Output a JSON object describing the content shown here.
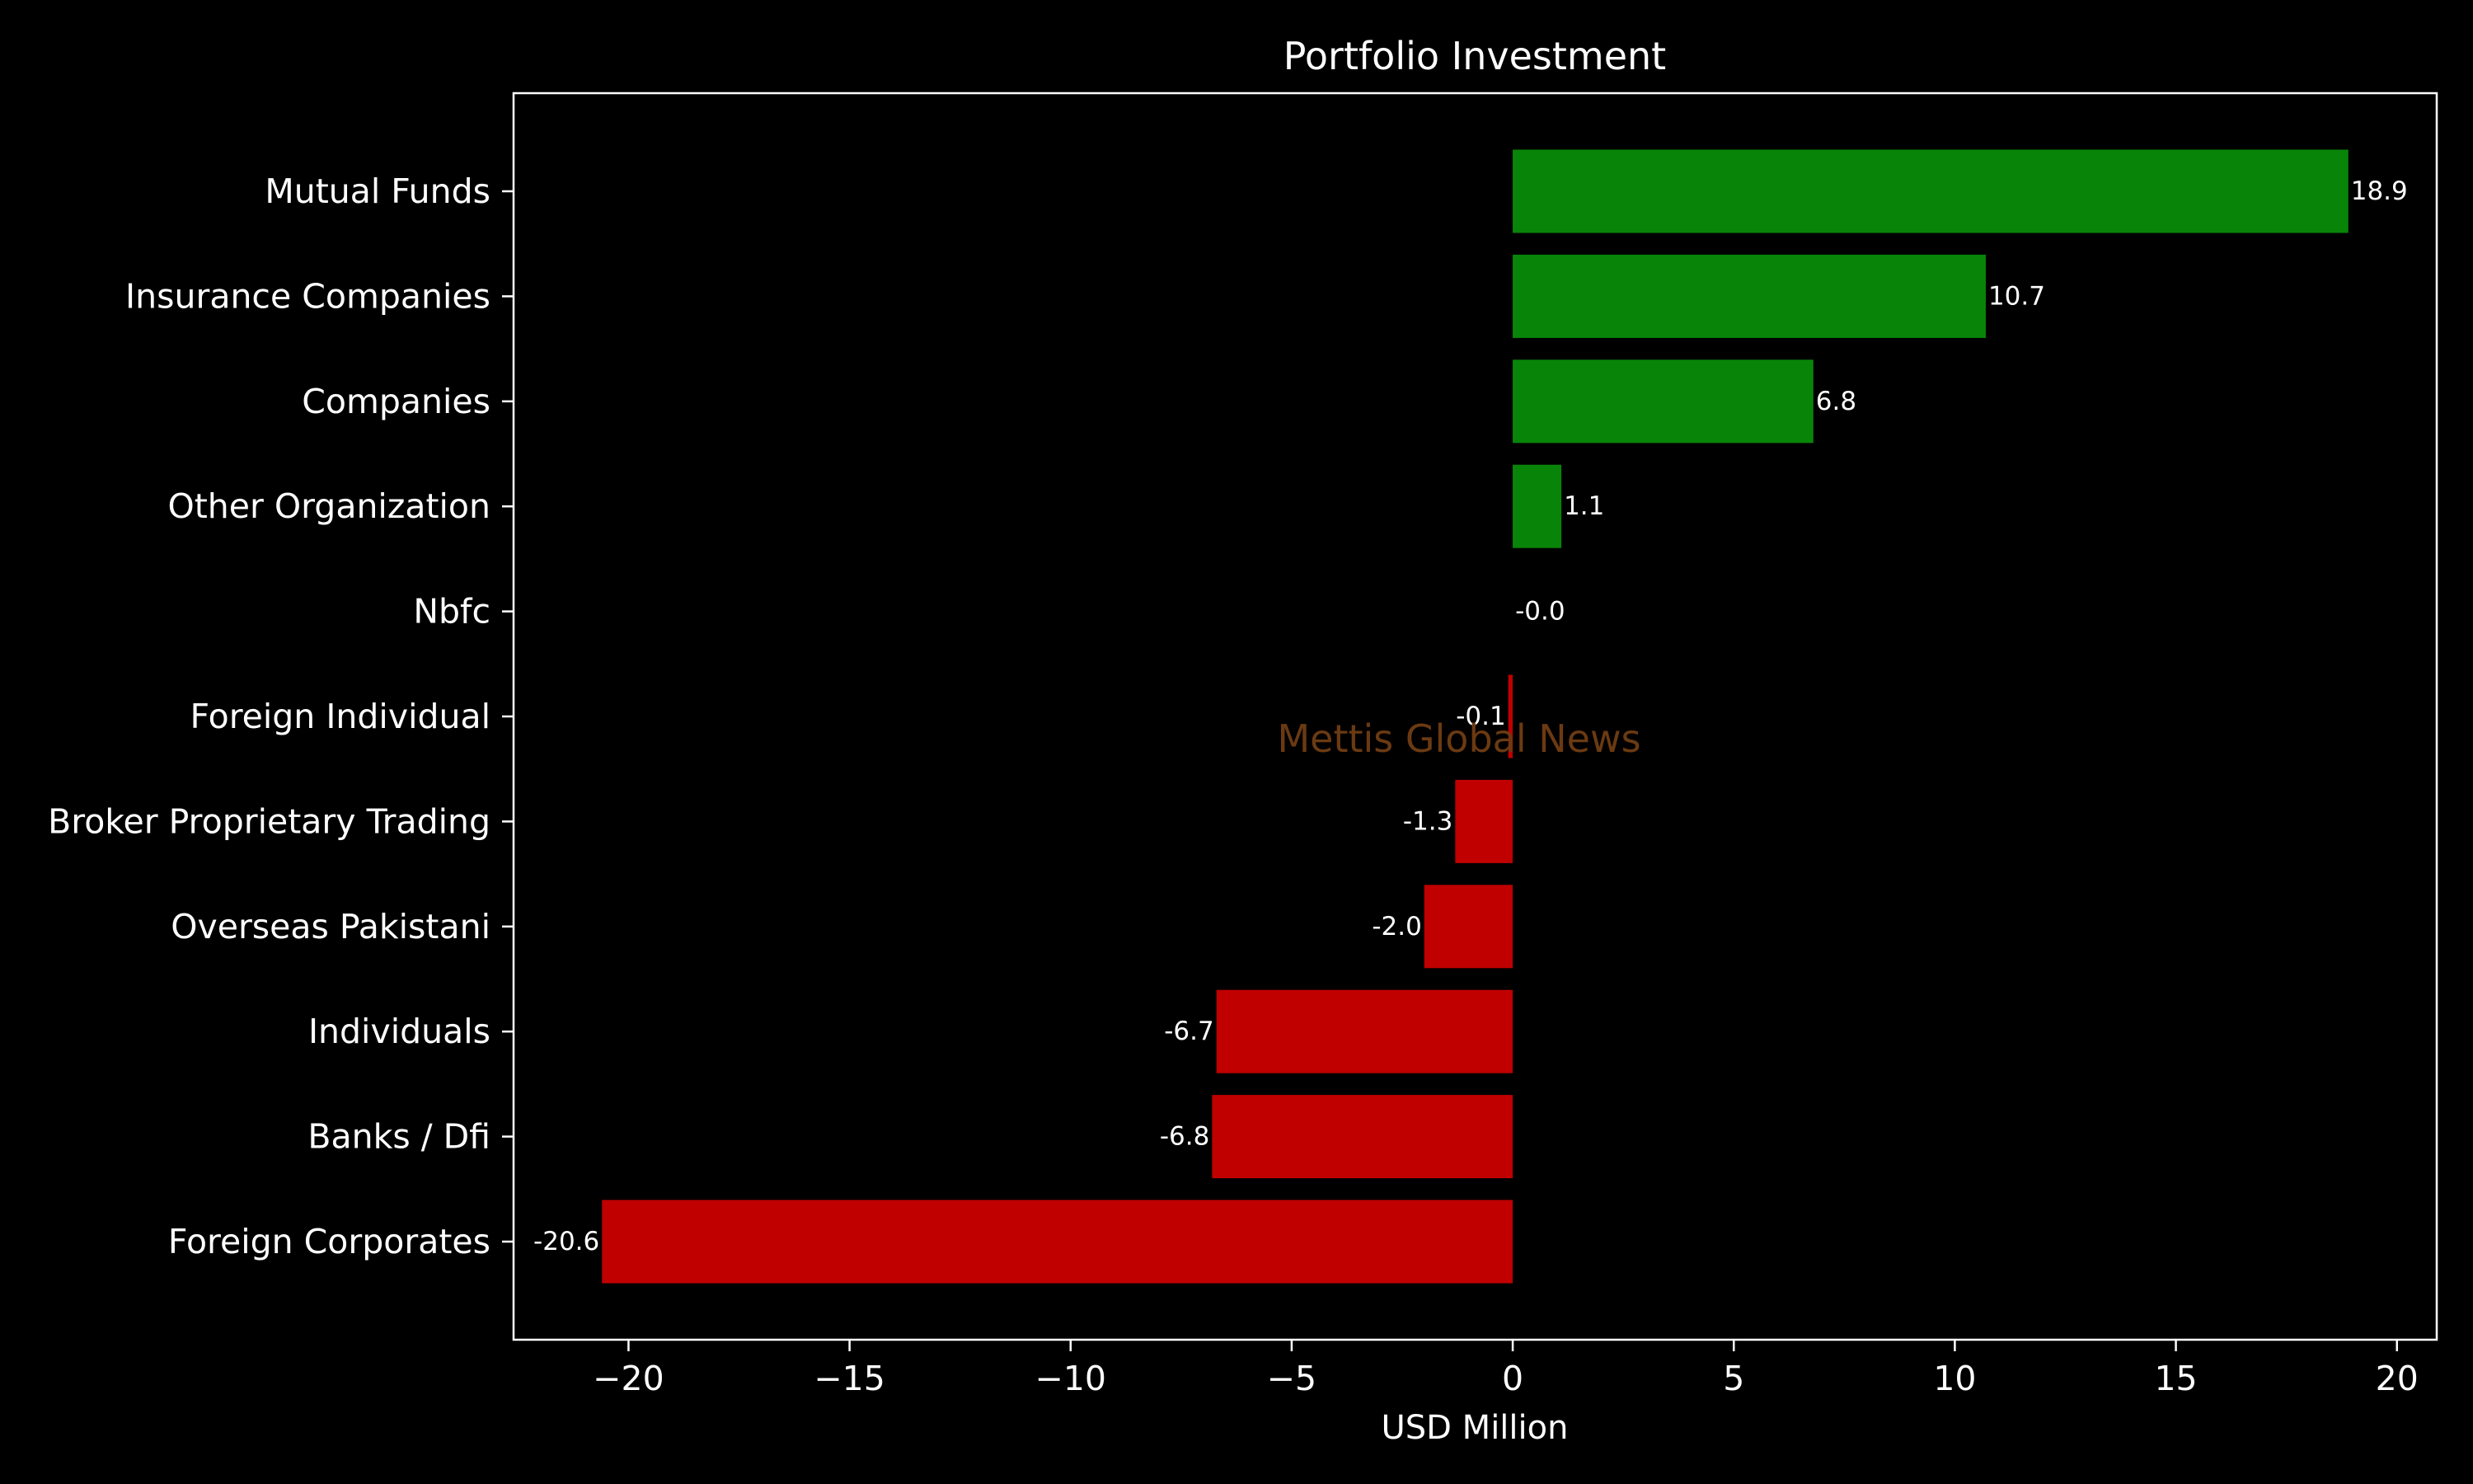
{
  "chart_data": {
    "type": "bar",
    "orientation": "horizontal",
    "title": "Portfolio Investment",
    "xlabel": "USD Million",
    "ylabel": "",
    "categories": [
      "Mutual Funds",
      "Insurance Companies",
      "Companies",
      "Other Organization",
      "Nbfc",
      "Foreign Individual",
      "Broker Proprietary Trading",
      "Overseas Pakistani",
      "Individuals",
      "Banks / Dfi",
      "Foreign Corporates "
    ],
    "values": [
      18.9,
      10.7,
      6.8,
      1.1,
      -0.0,
      -0.1,
      -1.3,
      -2.0,
      -6.7,
      -6.8,
      -20.6
    ],
    "value_labels": [
      "18.9",
      "10.7",
      "6.8",
      "1.1",
      "-0.0",
      "-0.1",
      "-1.3",
      "-2.0",
      "-6.7",
      "-6.8",
      "-20.6"
    ],
    "xlim": [
      -22.6,
      20.9
    ],
    "xticks": [
      -20,
      -15,
      -10,
      -5,
      0,
      5,
      10,
      15,
      20
    ],
    "xtick_labels": [
      "−20",
      "−15",
      "−10",
      "−5",
      "0",
      "5",
      "10",
      "15",
      "20"
    ],
    "grid": false,
    "legend": "none",
    "colors": {
      "positive": "#088508",
      "negative": "#c00000",
      "background": "#000000",
      "axes": "#ffffff",
      "text": "#ffffff",
      "watermark": "#6b3a12"
    },
    "watermark": "Mettis Global News"
  }
}
